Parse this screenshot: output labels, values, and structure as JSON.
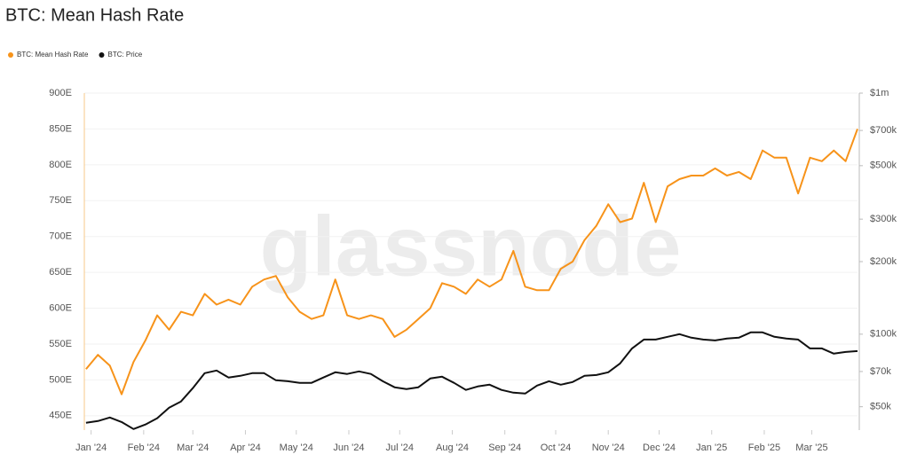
{
  "chart_data": {
    "type": "line",
    "title": "BTC: Mean Hash Rate",
    "watermark": "glassnode",
    "x": [
      -3,
      4,
      11,
      18,
      25,
      32,
      39,
      46,
      53,
      60,
      67,
      74,
      81,
      88,
      95,
      102,
      109,
      116,
      123,
      130,
      137,
      144,
      151,
      158,
      165,
      172,
      179,
      186,
      193,
      200,
      207,
      214,
      221,
      228,
      235,
      242,
      249,
      256,
      263,
      270,
      277,
      284,
      291,
      298,
      305,
      312,
      319,
      326,
      333,
      340,
      347,
      354,
      361,
      368,
      375,
      382,
      389,
      396,
      403,
      410,
      417,
      424,
      431,
      438,
      445,
      452
    ],
    "xlim": [
      -4,
      452
    ],
    "xticks": [
      {
        "value": 0,
        "label": "Jan '24"
      },
      {
        "value": 31,
        "label": "Feb '24"
      },
      {
        "value": 60,
        "label": "Mar '24"
      },
      {
        "value": 91,
        "label": "Apr '24"
      },
      {
        "value": 121,
        "label": "May '24"
      },
      {
        "value": 152,
        "label": "Jun '24"
      },
      {
        "value": 182,
        "label": "Jul '24"
      },
      {
        "value": 213,
        "label": "Aug '24"
      },
      {
        "value": 244,
        "label": "Sep '24"
      },
      {
        "value": 274,
        "label": "Oct '24"
      },
      {
        "value": 305,
        "label": "Nov '24"
      },
      {
        "value": 335,
        "label": "Dec '24"
      },
      {
        "value": 366,
        "label": "Jan '25"
      },
      {
        "value": 397,
        "label": "Feb '25"
      },
      {
        "value": 425,
        "label": "Mar '25"
      }
    ],
    "ylim": [
      430,
      900
    ],
    "yticks": [
      {
        "value": 450,
        "label": "450E"
      },
      {
        "value": 500,
        "label": "500E"
      },
      {
        "value": 550,
        "label": "550E"
      },
      {
        "value": 600,
        "label": "600E"
      },
      {
        "value": 650,
        "label": "650E"
      },
      {
        "value": 700,
        "label": "700E"
      },
      {
        "value": 750,
        "label": "750E"
      },
      {
        "value": 800,
        "label": "800E"
      },
      {
        "value": 850,
        "label": "850E"
      },
      {
        "value": 900,
        "label": "900E"
      }
    ],
    "y2lim": [
      40000,
      1000000
    ],
    "y2log": true,
    "y2ticks": [
      {
        "value": 50000,
        "label": "$50k"
      },
      {
        "value": 70000,
        "label": "$70k"
      },
      {
        "value": 100000,
        "label": "$100k"
      },
      {
        "value": 200000,
        "label": "$200k"
      },
      {
        "value": 300000,
        "label": "$300k"
      },
      {
        "value": 500000,
        "label": "$500k"
      },
      {
        "value": 700000,
        "label": "$700k"
      },
      {
        "value": 1000000,
        "label": "$1m"
      }
    ],
    "grid": true,
    "legend": "top-left",
    "series": [
      {
        "name": "BTC: Mean Hash Rate",
        "color": "#f7931a",
        "axis": "y",
        "values": [
          515,
          535,
          520,
          480,
          525,
          555,
          590,
          570,
          595,
          590,
          620,
          605,
          612,
          605,
          630,
          640,
          645,
          615,
          595,
          585,
          590,
          640,
          590,
          585,
          590,
          585,
          560,
          570,
          585,
          600,
          635,
          630,
          620,
          640,
          630,
          640,
          680,
          630,
          625,
          625,
          655,
          665,
          695,
          715,
          745,
          720,
          725,
          775,
          720,
          770,
          780,
          785,
          785,
          795,
          785,
          790,
          780,
          820,
          810,
          810,
          760,
          810,
          805,
          820,
          805,
          850
        ]
      },
      {
        "name": "BTC: Price",
        "color": "#111111",
        "axis": "y2",
        "values": [
          42900,
          43600,
          45100,
          43200,
          40400,
          42200,
          44800,
          49500,
          52600,
          59700,
          68900,
          70700,
          66100,
          67200,
          68900,
          68900,
          64400,
          63800,
          62800,
          62800,
          66100,
          69500,
          68400,
          70100,
          68400,
          63800,
          60200,
          59200,
          60200,
          65500,
          66600,
          62800,
          58700,
          60700,
          61700,
          58700,
          57200,
          56700,
          61200,
          63800,
          61700,
          63300,
          67200,
          67700,
          69500,
          75600,
          87300,
          95000,
          95000,
          97500,
          100000,
          96700,
          95000,
          94200,
          95900,
          96700,
          101700,
          101700,
          97500,
          95900,
          95000,
          87300,
          87300,
          83000,
          84400,
          85100
        ]
      }
    ]
  }
}
